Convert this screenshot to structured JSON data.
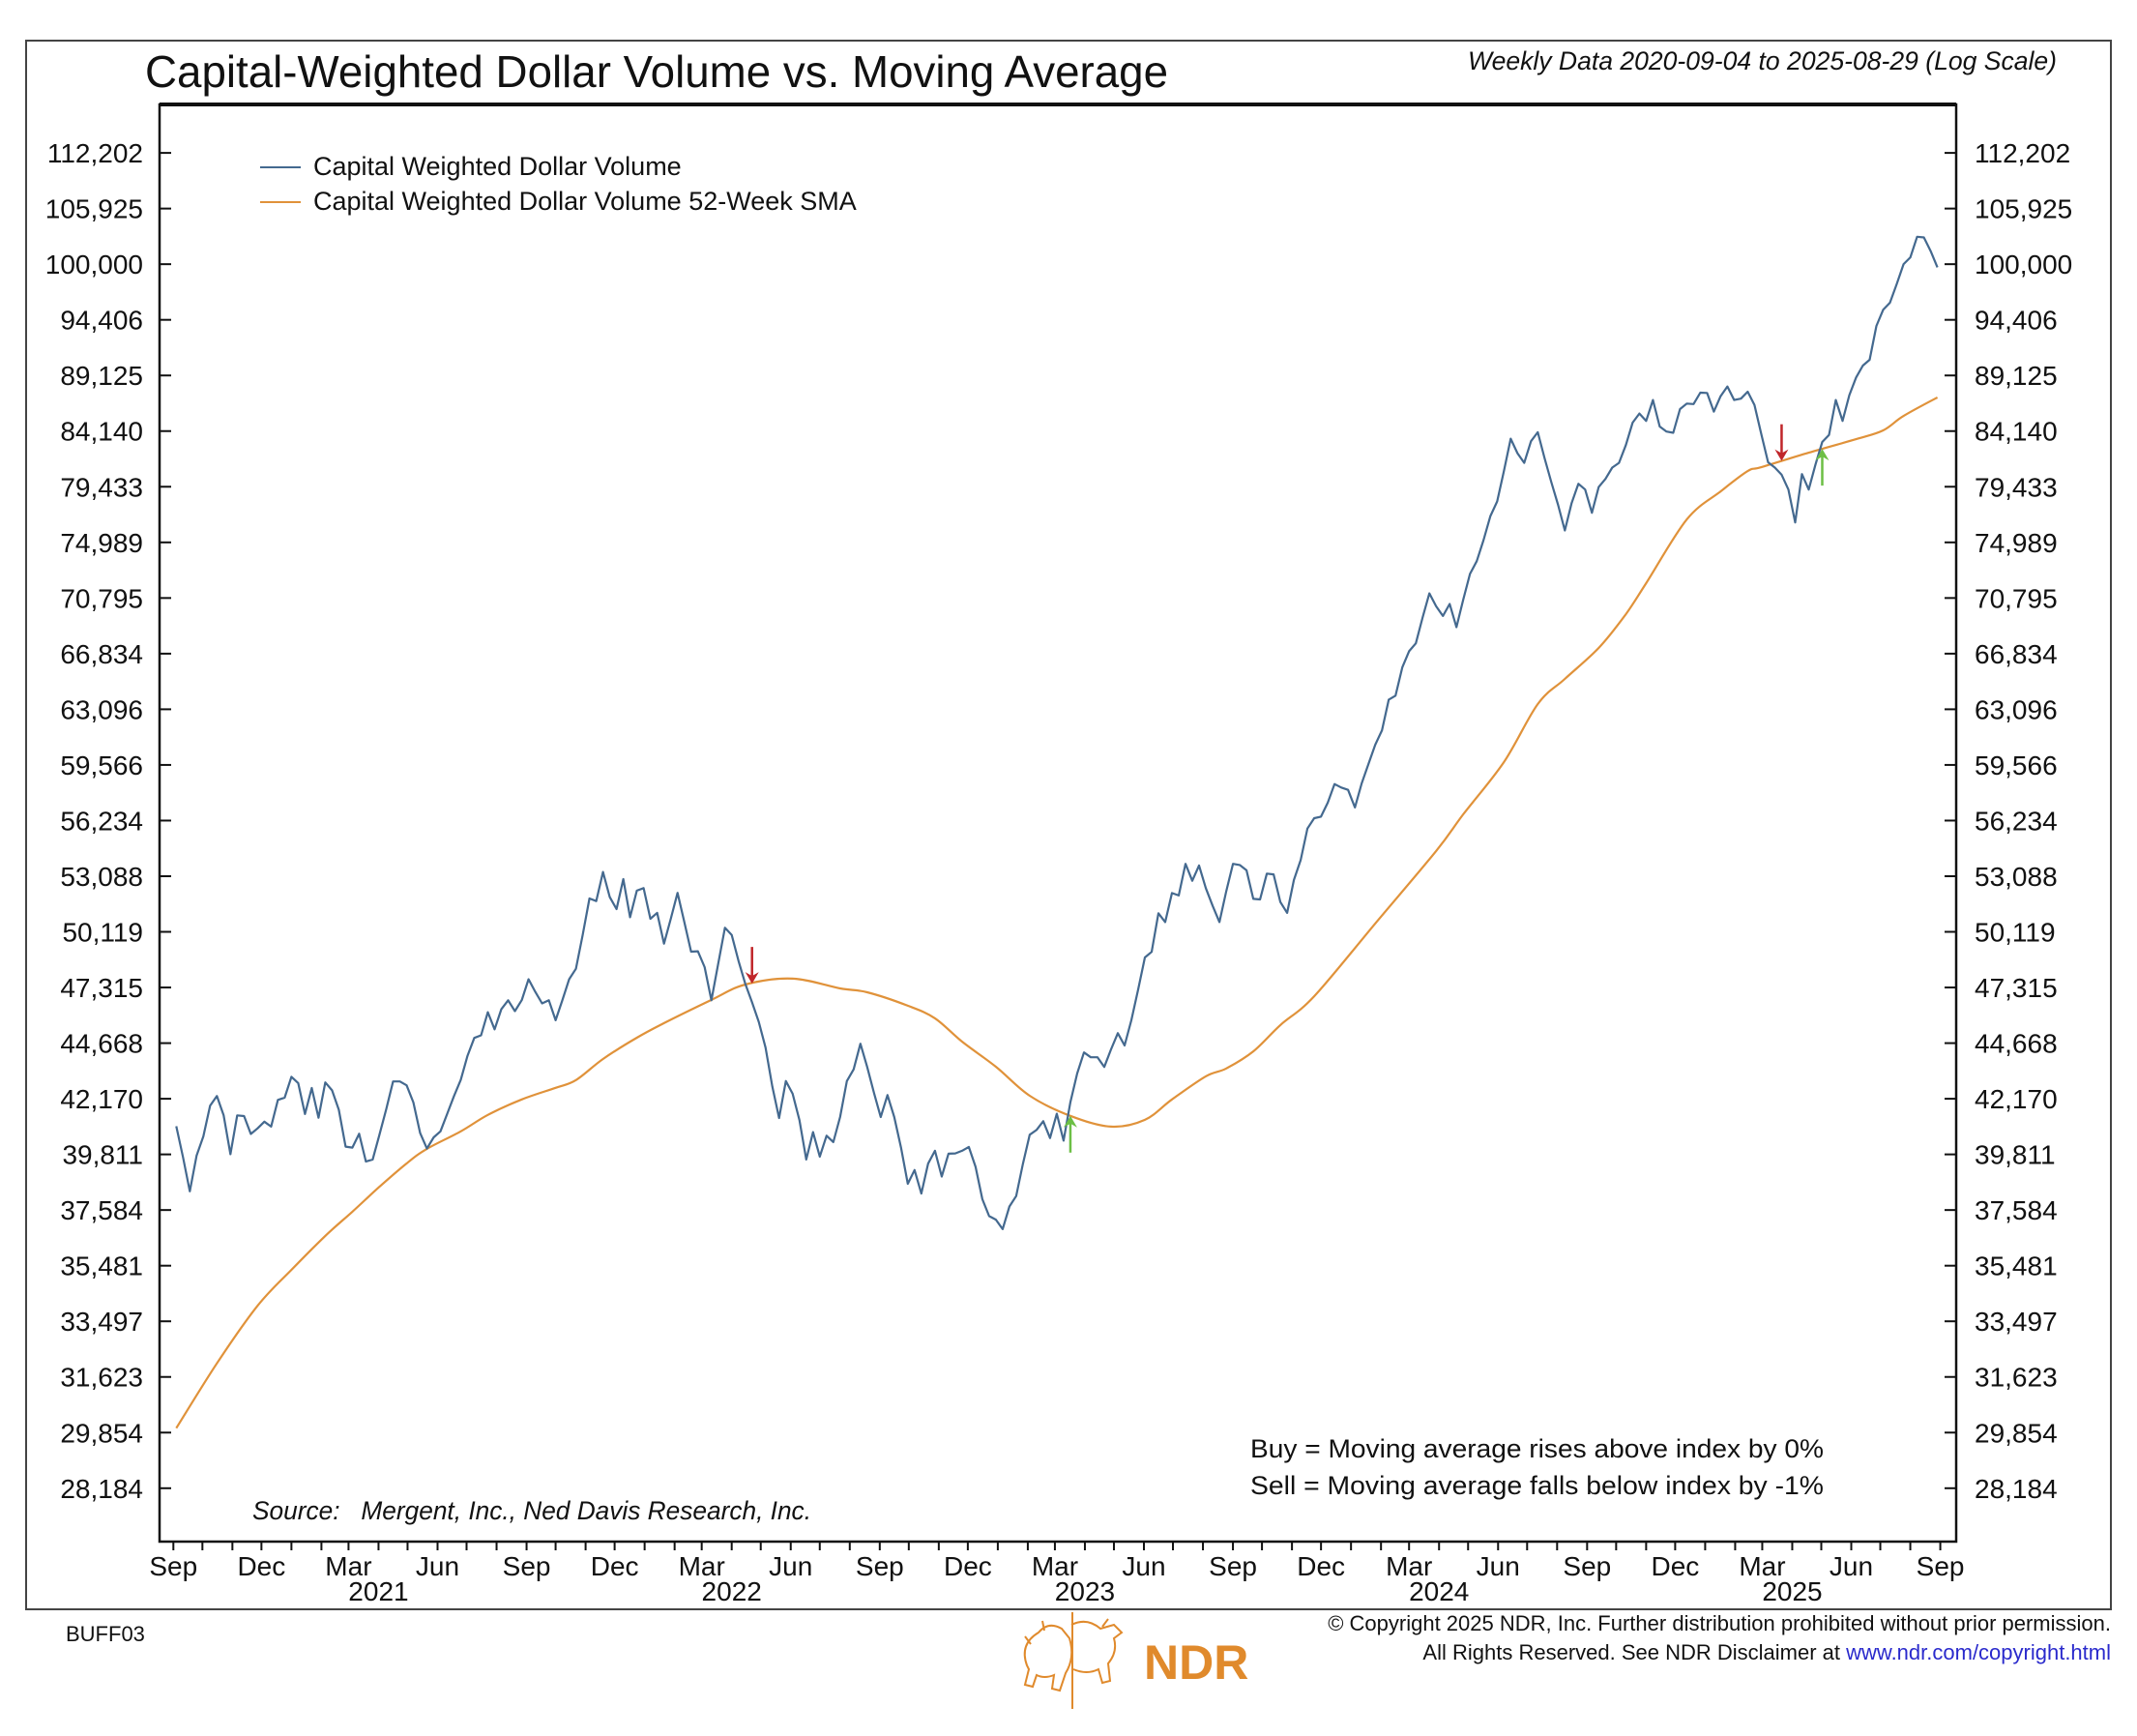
{
  "chart_data": {
    "type": "line",
    "title": "Capital-Weighted Dollar Volume vs. Moving Average",
    "subtitle": "Weekly Data 2020-09-04 to 2025-08-29 (Log Scale)",
    "y_scale": "log",
    "ylim": [
      28184,
      112202
    ],
    "grid": false,
    "legend_position": "top-left",
    "y_ticks": [
      "112,202",
      "105,925",
      "100,000",
      "94,406",
      "89,125",
      "84,140",
      "79,433",
      "74,989",
      "70,795",
      "66,834",
      "63,096",
      "59,566",
      "56,234",
      "53,088",
      "50,119",
      "47,315",
      "44,668",
      "42,170",
      "39,811",
      "37,584",
      "35,481",
      "33,497",
      "31,623",
      "29,854",
      "28,184"
    ],
    "x_ticks": [
      {
        "label": "Sep",
        "date": "2020-09-01"
      },
      {
        "label": "Dec",
        "date": "2020-12-01"
      },
      {
        "label": "Mar",
        "date": "2021-03-01"
      },
      {
        "label": "Jun",
        "date": "2021-06-01"
      },
      {
        "label": "Sep",
        "date": "2021-09-01"
      },
      {
        "label": "Dec",
        "date": "2021-12-01"
      },
      {
        "label": "Mar",
        "date": "2022-03-01"
      },
      {
        "label": "Jun",
        "date": "2022-06-01"
      },
      {
        "label": "Sep",
        "date": "2022-09-01"
      },
      {
        "label": "Dec",
        "date": "2022-12-01"
      },
      {
        "label": "Mar",
        "date": "2023-03-01"
      },
      {
        "label": "Jun",
        "date": "2023-06-01"
      },
      {
        "label": "Sep",
        "date": "2023-09-01"
      },
      {
        "label": "Dec",
        "date": "2023-12-01"
      },
      {
        "label": "Mar",
        "date": "2024-03-01"
      },
      {
        "label": "Jun",
        "date": "2024-06-01"
      },
      {
        "label": "Sep",
        "date": "2024-09-01"
      },
      {
        "label": "Dec",
        "date": "2024-12-01"
      },
      {
        "label": "Mar",
        "date": "2025-03-01"
      },
      {
        "label": "Jun",
        "date": "2025-06-01"
      },
      {
        "label": "Sep",
        "date": "2025-09-01"
      }
    ],
    "x_years": [
      "2021",
      "2022",
      "2023",
      "2024",
      "2025"
    ],
    "series": [
      {
        "name": "Capital Weighted Dollar Volume",
        "color": "#44698f",
        "start_date": "2020-09-04",
        "frequency": "weekly",
        "values": [
          40990,
          39690,
          38320,
          39760,
          40560,
          41870,
          42290,
          41450,
          39820,
          41450,
          41420,
          40660,
          40900,
          41180,
          40970,
          42120,
          42220,
          43140,
          42860,
          41510,
          42640,
          41350,
          42890,
          42540,
          41690,
          40130,
          40090,
          40670,
          39520,
          39600,
          40630,
          41730,
          42930,
          42930,
          42760,
          42010,
          40700,
          40050,
          40520,
          40770,
          41520,
          42290,
          43000,
          44090,
          44910,
          45030,
          46120,
          45310,
          46270,
          46690,
          46170,
          46700,
          47720,
          47100,
          46540,
          46690,
          45740,
          46700,
          47720,
          48240,
          49960,
          51880,
          51740,
          53320,
          51950,
          51310,
          52930,
          50880,
          52300,
          52440,
          50800,
          51110,
          49510,
          50800,
          52180,
          50630,
          49100,
          49120,
          48320,
          46690,
          48480,
          50330,
          49960,
          48640,
          47500,
          46600,
          45660,
          44460,
          42710,
          41340,
          42950,
          42390,
          41240,
          39600,
          40740,
          39720,
          40590,
          40320,
          41380,
          42950,
          43470,
          44640,
          43580,
          42430,
          41380,
          42330,
          41380,
          40090,
          38620,
          39170,
          38230,
          39430,
          39960,
          38910,
          39840,
          39850,
          39960,
          40120,
          39300,
          38010,
          37350,
          37210,
          36850,
          37720,
          38130,
          39430,
          40630,
          40830,
          41200,
          40490,
          41520,
          40380,
          42010,
          43290,
          44240,
          44020,
          44020,
          43580,
          44380,
          45130,
          44560,
          45740,
          47210,
          48810,
          49090,
          51090,
          50630,
          52170,
          52040,
          53770,
          52840,
          53680,
          52440,
          51480,
          50630,
          52260,
          53770,
          53710,
          53410,
          51860,
          51830,
          53230,
          53190,
          51690,
          51110,
          52880,
          53980,
          55770,
          56370,
          56460,
          57280,
          58400,
          58190,
          58050,
          57000,
          58440,
          59620,
          60820,
          61740,
          63730,
          63990,
          65890,
          67000,
          67550,
          69380,
          71140,
          70190,
          69490,
          70360,
          68690,
          70670,
          72580,
          73550,
          75160,
          77060,
          78230,
          80740,
          83480,
          82240,
          81420,
          83260,
          84040,
          81830,
          79810,
          77960,
          75920,
          78100,
          79680,
          79200,
          77320,
          79410,
          80080,
          81020,
          81420,
          82930,
          84880,
          85680,
          85030,
          86890,
          84540,
          84100,
          83990,
          86080,
          86570,
          86530,
          87550,
          87530,
          85850,
          87240,
          88120,
          86890,
          87010,
          87640,
          86450,
          83900,
          81470,
          81020,
          80420,
          79200,
          76550,
          80480,
          79200,
          81280,
          83200,
          83810,
          86890,
          85030,
          87330,
          88940,
          90040,
          90580,
          93810,
          95390,
          96090,
          97970,
          100010,
          100710,
          102880,
          102810,
          101370,
          99680
        ]
      },
      {
        "name": "Capital Weighted Dollar Volume 52-Week SMA",
        "color": "#e0923a",
        "points": [
          [
            "2020-09-04",
            29990
          ],
          [
            "2020-10-16",
            32070
          ],
          [
            "2020-11-27",
            34040
          ],
          [
            "2021-01-01",
            35330
          ],
          [
            "2021-02-05",
            36590
          ],
          [
            "2021-03-05",
            37520
          ],
          [
            "2021-04-02",
            38500
          ],
          [
            "2021-04-30",
            39440
          ],
          [
            "2021-05-21",
            40040
          ],
          [
            "2021-06-25",
            40770
          ],
          [
            "2021-07-23",
            41470
          ],
          [
            "2021-08-27",
            42140
          ],
          [
            "2021-10-01",
            42650
          ],
          [
            "2021-10-22",
            42990
          ],
          [
            "2021-11-19",
            43940
          ],
          [
            "2021-12-24",
            44920
          ],
          [
            "2022-01-21",
            45600
          ],
          [
            "2022-03-11",
            46710
          ],
          [
            "2022-04-15",
            47460
          ],
          [
            "2022-06-03",
            47750
          ],
          [
            "2022-07-22",
            47270
          ],
          [
            "2022-08-19",
            47080
          ],
          [
            "2022-09-30",
            46430
          ],
          [
            "2022-10-28",
            45830
          ],
          [
            "2022-11-25",
            44740
          ],
          [
            "2022-12-30",
            43590
          ],
          [
            "2023-02-03",
            42300
          ],
          [
            "2023-03-17",
            41430
          ],
          [
            "2023-04-28",
            40970
          ],
          [
            "2023-06-02",
            41260
          ],
          [
            "2023-06-30",
            42140
          ],
          [
            "2023-08-04",
            43160
          ],
          [
            "2023-08-25",
            43510
          ],
          [
            "2023-09-22",
            44290
          ],
          [
            "2023-10-20",
            45510
          ],
          [
            "2023-11-24",
            46890
          ],
          [
            "2024-01-26",
            50550
          ],
          [
            "2024-03-29",
            54490
          ],
          [
            "2024-04-26",
            56600
          ],
          [
            "2024-06-07",
            59740
          ],
          [
            "2024-07-12",
            63440
          ],
          [
            "2024-08-09",
            65110
          ],
          [
            "2024-09-13",
            67230
          ],
          [
            "2024-10-11",
            69620
          ],
          [
            "2024-11-01",
            71890
          ],
          [
            "2024-12-13",
            76790
          ],
          [
            "2025-01-17",
            79050
          ],
          [
            "2025-02-14",
            80730
          ],
          [
            "2025-02-28",
            81050
          ],
          [
            "2025-04-18",
            82280
          ],
          [
            "2025-06-06",
            83440
          ],
          [
            "2025-07-04",
            84200
          ],
          [
            "2025-07-25",
            85470
          ],
          [
            "2025-08-29",
            87120
          ]
        ]
      }
    ],
    "signals": [
      {
        "type": "sell",
        "date": "2022-04-22",
        "color": "#c0262a"
      },
      {
        "type": "buy",
        "date": "2023-03-17",
        "color": "#6cbf45"
      },
      {
        "type": "sell",
        "date": "2025-03-21",
        "color": "#c0262a"
      },
      {
        "type": "buy",
        "date": "2025-05-02",
        "color": "#6cbf45"
      }
    ],
    "annotations": {
      "source": "Source:   Mergent, Inc., Ned Davis Research, Inc.",
      "buy_rule": "Buy = Moving average rises above index by 0%",
      "sell_rule": "Sell = Moving average falls below index by -1%"
    }
  },
  "footer": {
    "code": "BUFF03",
    "copyright_line1": "© Copyright 2025 NDR, Inc. Further distribution prohibited without prior permission.",
    "copyright_line2": "All Rights Reserved. See NDR Disclaimer at ",
    "link": "www.ndr.com/copyright.html",
    "logo_text": "NDR",
    "brand_color": "#e08a2c",
    "link_color": "#2a2acc"
  }
}
